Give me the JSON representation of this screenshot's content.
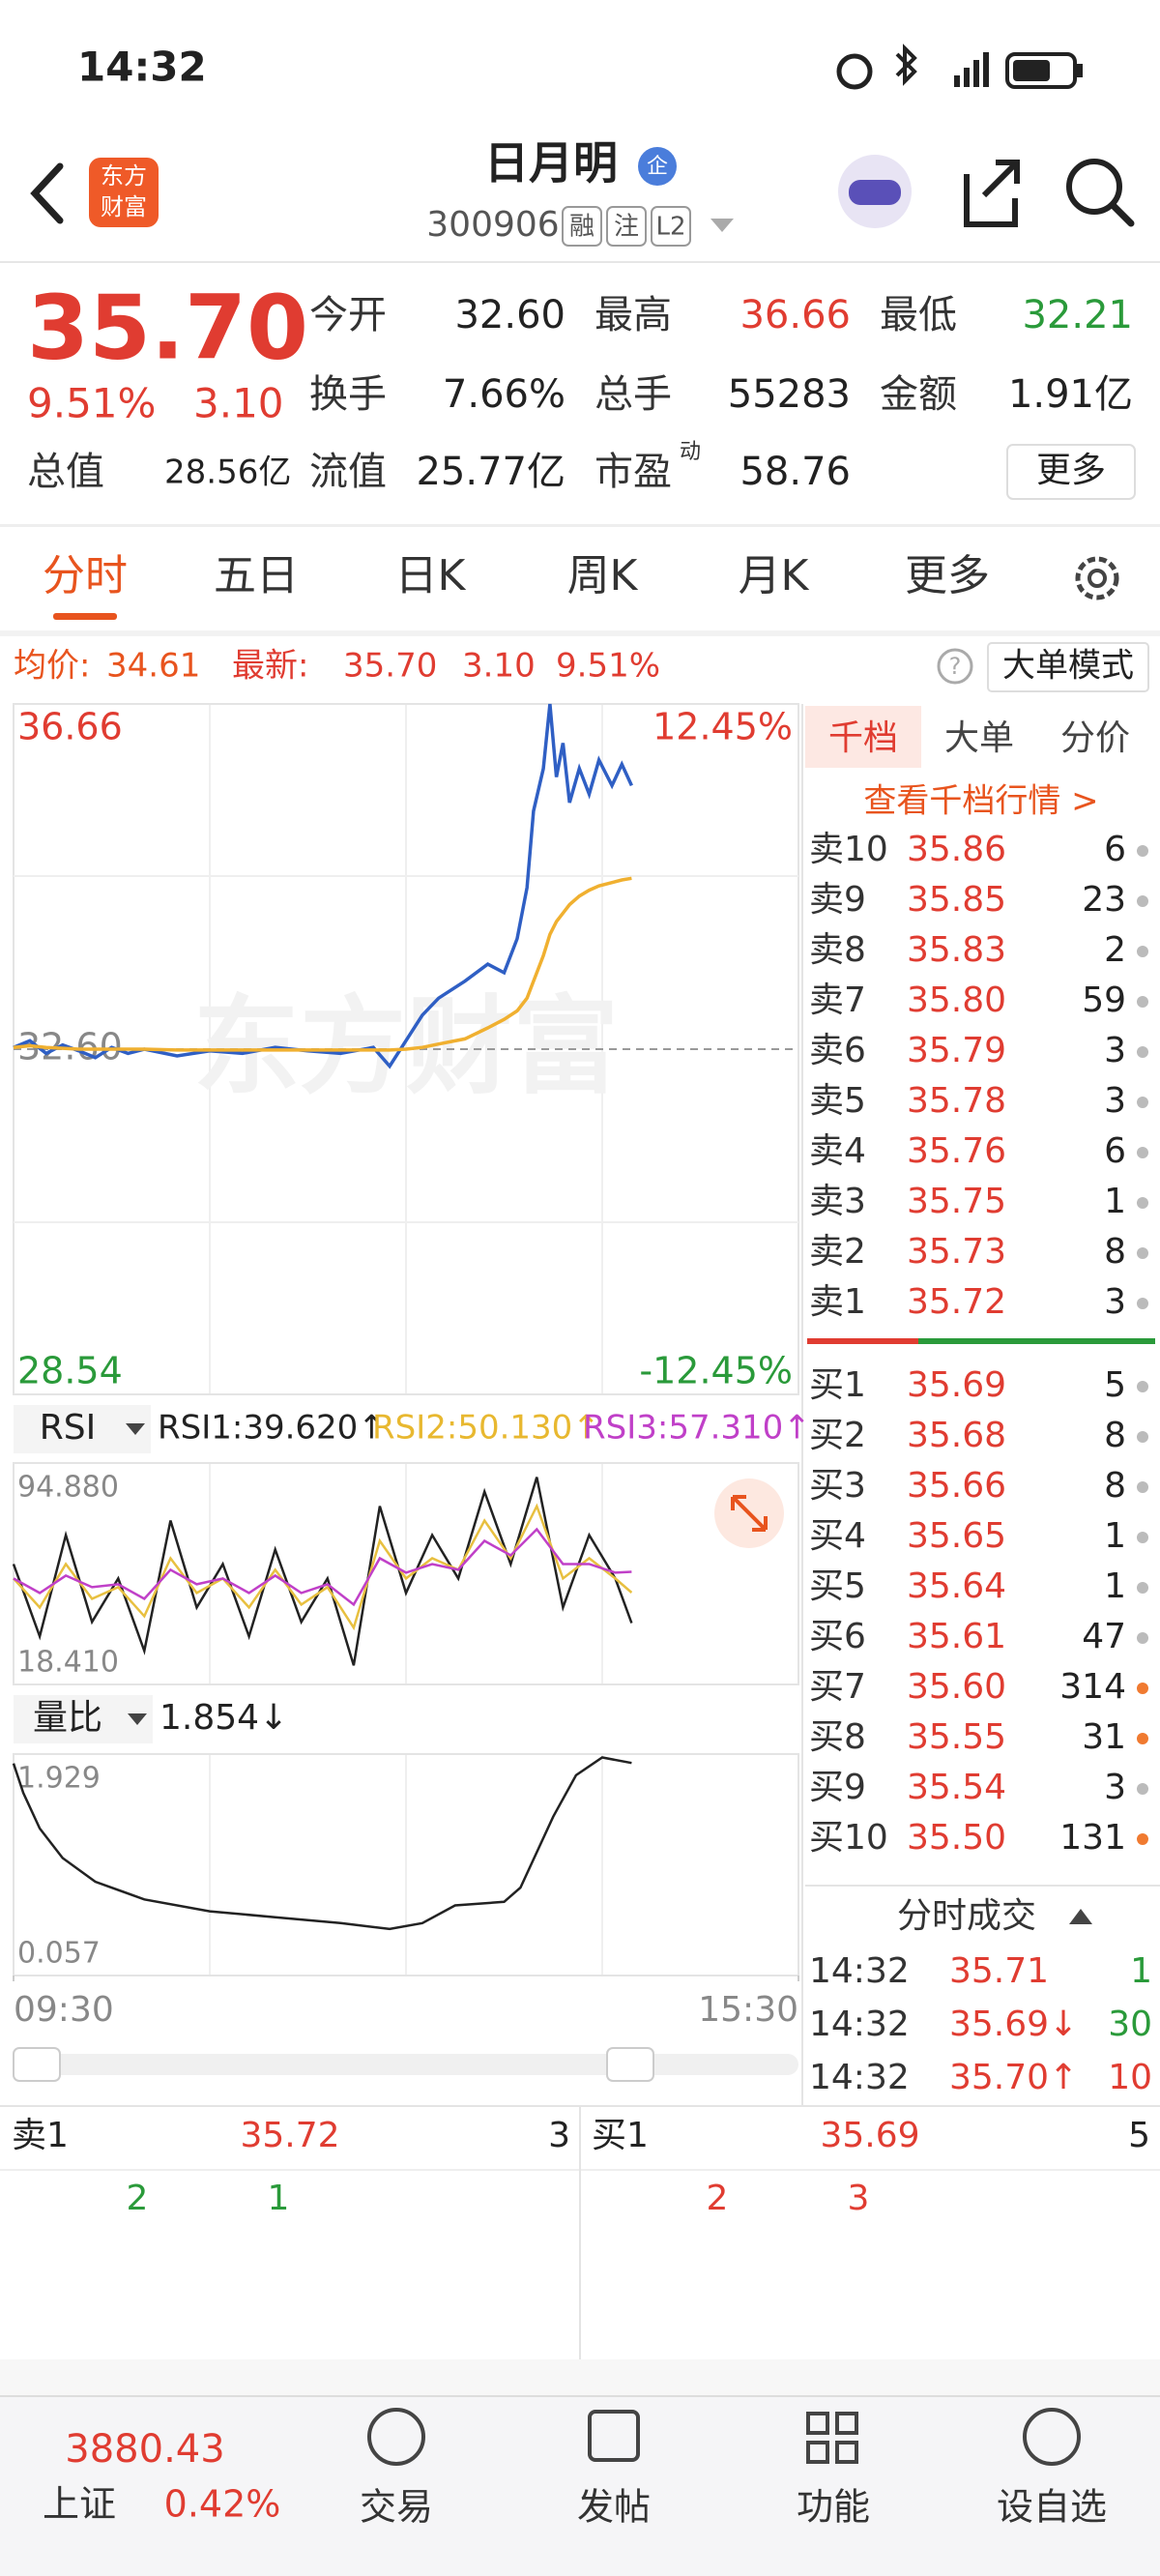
{
  "status_bar": {
    "time": "14:32"
  },
  "header": {
    "logo": [
      "东方",
      "财富"
    ],
    "title": "日月明",
    "badge": "企",
    "code": "300906",
    "tags": [
      "融",
      "注",
      "L2"
    ]
  },
  "quote": {
    "price": "35.70",
    "change_pct": "9.51%",
    "change": "3.10",
    "fields": [
      {
        "label": "今开",
        "value": "32.60"
      },
      {
        "label": "最高",
        "value": "36.66"
      },
      {
        "label": "最低",
        "value": "32.21"
      },
      {
        "label": "换手",
        "value": "7.66%"
      },
      {
        "label": "总手",
        "value": "55283"
      },
      {
        "label": "金额",
        "value": "1.91亿"
      },
      {
        "label": "总值",
        "value": "28.56亿"
      },
      {
        "label": "流值",
        "value": "25.77亿"
      },
      {
        "label": "市盈",
        "value": "58.76",
        "sup": "动"
      }
    ],
    "more": "更多"
  },
  "tabs": [
    "分时",
    "五日",
    "日K",
    "周K",
    "月K",
    "更多"
  ],
  "info": {
    "avg_label": "均价:",
    "avg": "34.61",
    "last_label": "最新:",
    "last": "35.70",
    "change": "3.10",
    "pct": "9.51%",
    "mode": "大单模式"
  },
  "watermark": "东方财富",
  "rsi_panel": {
    "selector": "RSI",
    "values": [
      "RSI1:39.620↑",
      "RSI2:50.130↑",
      "RSI3:57.310↑"
    ]
  },
  "vr_panel": {
    "selector": "量比",
    "value": "1.854↓"
  },
  "chart_data": [
    {
      "type": "line",
      "xlim": [
        0,
        240
      ],
      "ylim": [
        28.54,
        36.66
      ],
      "y2lim": [
        -12.45,
        12.45
      ],
      "yticks": [
        36.66,
        {
          "value": 32.6,
          "label": "32.60"
        },
        28.54
      ],
      "y2ticks": [
        {
          "value": 12.45,
          "label": "12.45%"
        },
        {
          "value": -12.45,
          "label": "-12.45%"
        }
      ],
      "x": [
        0,
        5,
        10,
        15,
        20,
        25,
        30,
        35,
        40,
        50,
        60,
        70,
        80,
        90,
        100,
        110,
        115,
        120,
        125,
        130,
        138,
        145,
        150,
        154,
        157,
        159,
        162,
        164,
        166,
        168,
        170,
        173,
        176,
        179,
        183,
        186,
        189
      ],
      "series": [
        {
          "color": "#2f5fc4",
          "values": [
            32.62,
            32.7,
            32.55,
            32.65,
            32.58,
            32.5,
            32.62,
            32.55,
            32.6,
            32.52,
            32.58,
            32.55,
            32.62,
            32.58,
            32.55,
            32.62,
            32.4,
            32.7,
            33.0,
            33.2,
            33.4,
            33.6,
            33.5,
            33.9,
            34.5,
            35.4,
            35.9,
            36.66,
            35.8,
            36.2,
            35.5,
            35.9,
            35.6,
            36.0,
            35.7,
            35.95,
            35.7
          ]
        },
        {
          "color": "#f0b030",
          "values": [
            32.62,
            32.64,
            32.62,
            32.61,
            32.6,
            32.6,
            32.6,
            32.6,
            32.6,
            32.59,
            32.59,
            32.59,
            32.59,
            32.59,
            32.59,
            32.59,
            32.59,
            32.6,
            32.62,
            32.66,
            32.72,
            32.85,
            32.95,
            33.05,
            33.2,
            33.4,
            33.7,
            33.95,
            34.1,
            34.2,
            34.3,
            34.4,
            34.47,
            34.52,
            34.56,
            34.59,
            34.61
          ]
        }
      ]
    },
    {
      "type": "line",
      "xlim": [
        0,
        240
      ],
      "ylim": [
        18.41,
        94.88
      ],
      "yticks": [
        {
          "value": 94.88,
          "label": "94.880"
        },
        {
          "value": 18.41,
          "label": "18.410"
        }
      ],
      "x": [
        0,
        8,
        16,
        24,
        32,
        40,
        48,
        56,
        64,
        72,
        80,
        88,
        96,
        104,
        112,
        120,
        128,
        136,
        144,
        152,
        160,
        168,
        176,
        184,
        189
      ],
      "series": [
        {
          "color": "#222222",
          "values": [
            60,
            35,
            70,
            40,
            55,
            30,
            75,
            45,
            60,
            35,
            65,
            40,
            55,
            25,
            80,
            50,
            70,
            55,
            85,
            60,
            90,
            45,
            70,
            55,
            39.62
          ]
        },
        {
          "color": "#e8c040",
          "values": [
            55,
            45,
            60,
            48,
            52,
            42,
            62,
            50,
            55,
            45,
            58,
            46,
            52,
            38,
            68,
            55,
            62,
            58,
            75,
            62,
            80,
            55,
            62,
            55,
            50.13
          ]
        },
        {
          "color": "#c040c8",
          "values": [
            55,
            50,
            56,
            52,
            53,
            48,
            58,
            53,
            55,
            50,
            56,
            50,
            53,
            46,
            62,
            57,
            60,
            58,
            68,
            63,
            72,
            60,
            60,
            57,
            57.31
          ]
        }
      ]
    },
    {
      "type": "line",
      "xlim": [
        0,
        240
      ],
      "ylim": [
        0.057,
        1.929
      ],
      "yticks": [
        1.929,
        0.057
      ],
      "xticks": [
        {
          "value": 0,
          "label": "09:30"
        },
        {
          "value": 240,
          "label": "15:30"
        }
      ],
      "x": [
        0,
        3,
        8,
        15,
        25,
        40,
        60,
        80,
        100,
        115,
        125,
        135,
        150,
        155,
        165,
        172,
        180,
        189
      ],
      "series": [
        {
          "color": "#222222",
          "values": [
            1.85,
            1.6,
            1.3,
            1.05,
            0.85,
            0.7,
            0.6,
            0.55,
            0.5,
            0.45,
            0.5,
            0.65,
            0.68,
            0.8,
            1.4,
            1.75,
            1.9,
            1.854
          ]
        }
      ]
    }
  ],
  "order_book": {
    "tabs": [
      "千档",
      "大单",
      "分价"
    ],
    "link": "查看千档行情 >",
    "asks": [
      {
        "label": "卖10",
        "price": "35.86",
        "volume": "6"
      },
      {
        "label": "卖9",
        "price": "35.85",
        "volume": "23"
      },
      {
        "label": "卖8",
        "price": "35.83",
        "volume": "2"
      },
      {
        "label": "卖7",
        "price": "35.80",
        "volume": "59"
      },
      {
        "label": "卖6",
        "price": "35.79",
        "volume": "3"
      },
      {
        "label": "卖5",
        "price": "35.78",
        "volume": "3"
      },
      {
        "label": "卖4",
        "price": "35.76",
        "volume": "6"
      },
      {
        "label": "卖3",
        "price": "35.75",
        "volume": "1"
      },
      {
        "label": "卖2",
        "price": "35.73",
        "volume": "8"
      },
      {
        "label": "卖1",
        "price": "35.72",
        "volume": "3"
      }
    ],
    "bids": [
      {
        "label": "买1",
        "price": "35.69",
        "volume": "5"
      },
      {
        "label": "买2",
        "price": "35.68",
        "volume": "8"
      },
      {
        "label": "买3",
        "price": "35.66",
        "volume": "8"
      },
      {
        "label": "买4",
        "price": "35.65",
        "volume": "1"
      },
      {
        "label": "买5",
        "price": "35.64",
        "volume": "1"
      },
      {
        "label": "买6",
        "price": "35.61",
        "volume": "47"
      },
      {
        "label": "买7",
        "price": "35.60",
        "volume": "314",
        "dot_color": "#f07a30"
      },
      {
        "label": "买8",
        "price": "35.55",
        "volume": "31",
        "dot_color": "#f07a30"
      },
      {
        "label": "买9",
        "price": "35.54",
        "volume": "3"
      },
      {
        "label": "买10",
        "price": "35.50",
        "volume": "131",
        "dot_color": "#f07a30"
      }
    ]
  },
  "trades": {
    "title": "分时成交",
    "rows": [
      {
        "time": "14:32",
        "price": "35.71",
        "volume": "1"
      },
      {
        "time": "14:32",
        "price": "35.69↓",
        "volume": "30"
      },
      {
        "time": "14:32",
        "price": "35.70↑",
        "volume": "10"
      }
    ]
  },
  "level1": {
    "ask": {
      "label": "卖1",
      "price": "35.72",
      "volume": "3",
      "queue": [
        "2",
        "1"
      ]
    },
    "bid": {
      "label": "买1",
      "price": "35.69",
      "volume": "5",
      "queue": [
        "2",
        "3"
      ]
    }
  },
  "nav": {
    "index": {
      "value": "3880.43",
      "name": "上证",
      "change": "0.42%"
    },
    "items": [
      "交易",
      "发帖",
      "功能",
      "设自选"
    ]
  }
}
